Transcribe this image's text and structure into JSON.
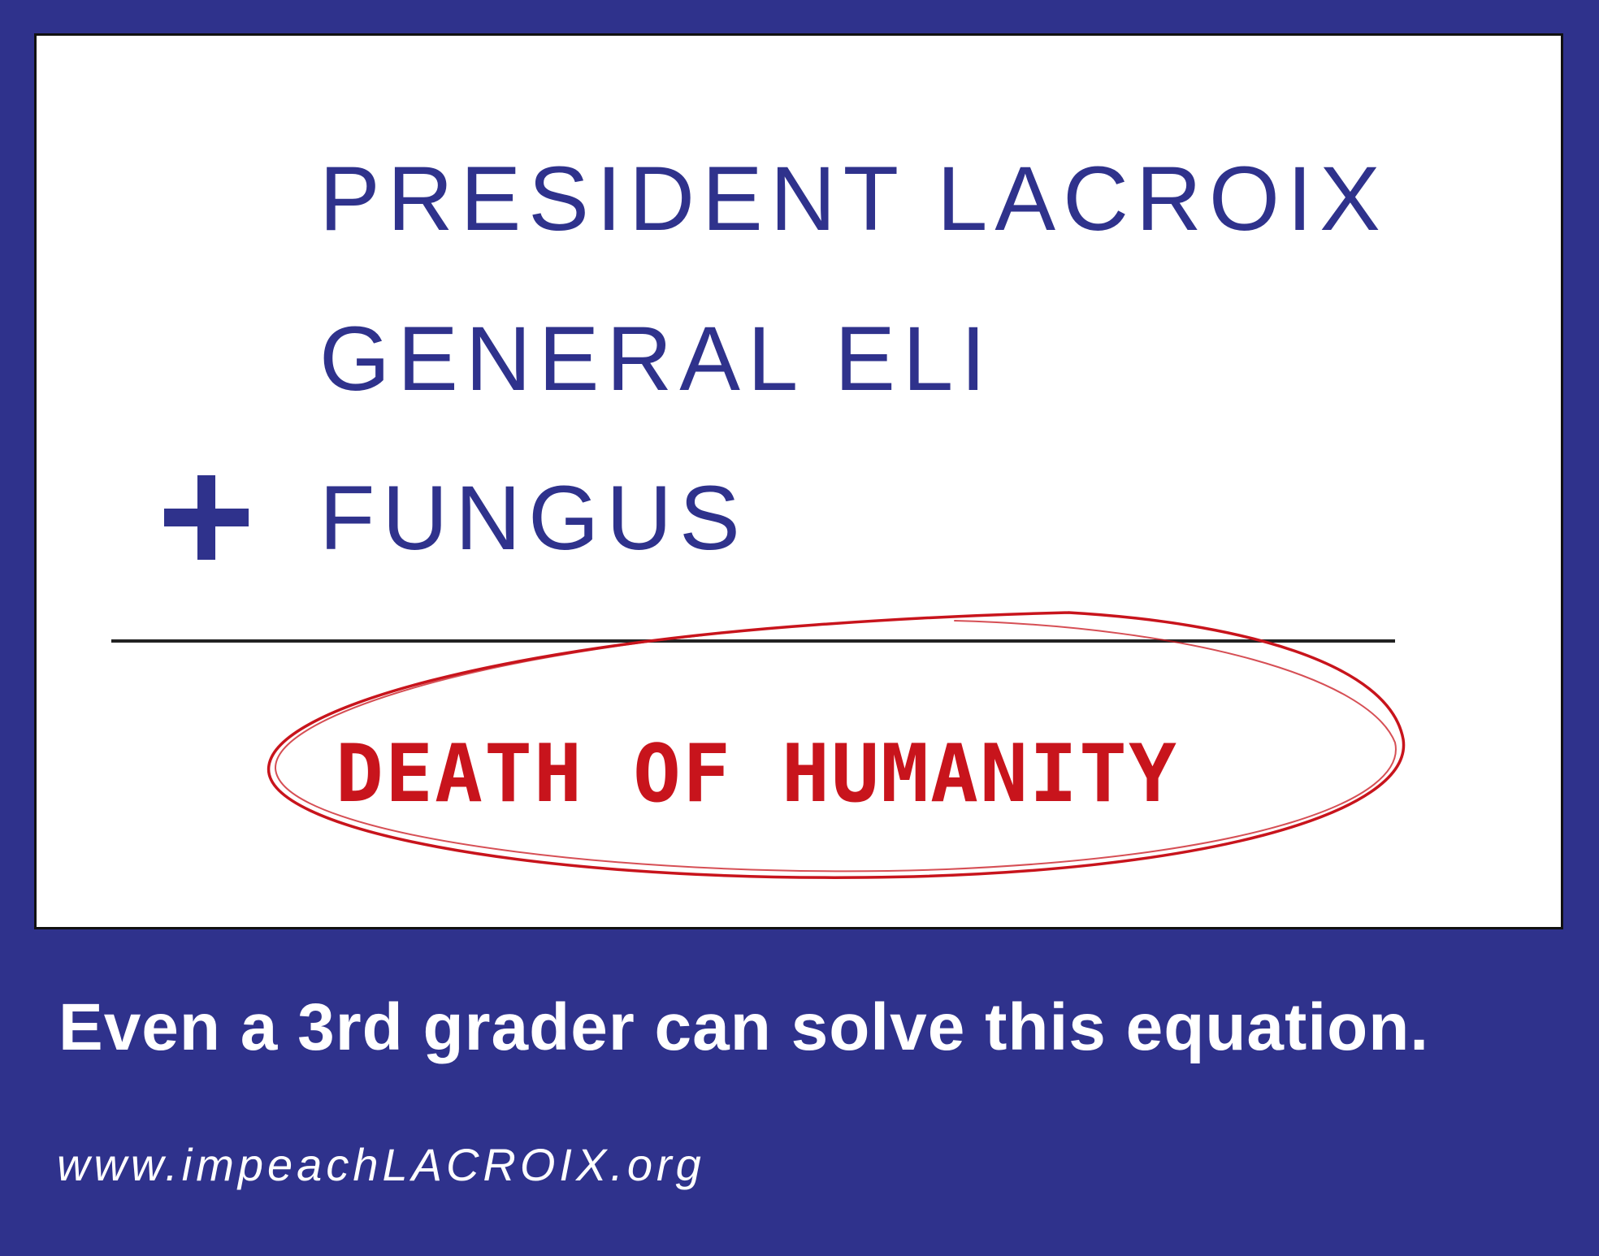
{
  "equation": {
    "terms": [
      "PRESIDENT LACROIX",
      "GENERAL ELI",
      "FUNGUS"
    ],
    "operator_icon": "plus-icon",
    "result": "DEATH OF HUMANITY"
  },
  "tagline": "Even a 3rd grader can solve this equation.",
  "website": "www.impeachLACROIX.org",
  "colors": {
    "background": "#2f328c",
    "card": "#ffffff",
    "term_text": "#2f328c",
    "result_text": "#c8141c",
    "result_circle": "#c8141c",
    "divider": "#222222",
    "footer_text": "#ffffff"
  }
}
